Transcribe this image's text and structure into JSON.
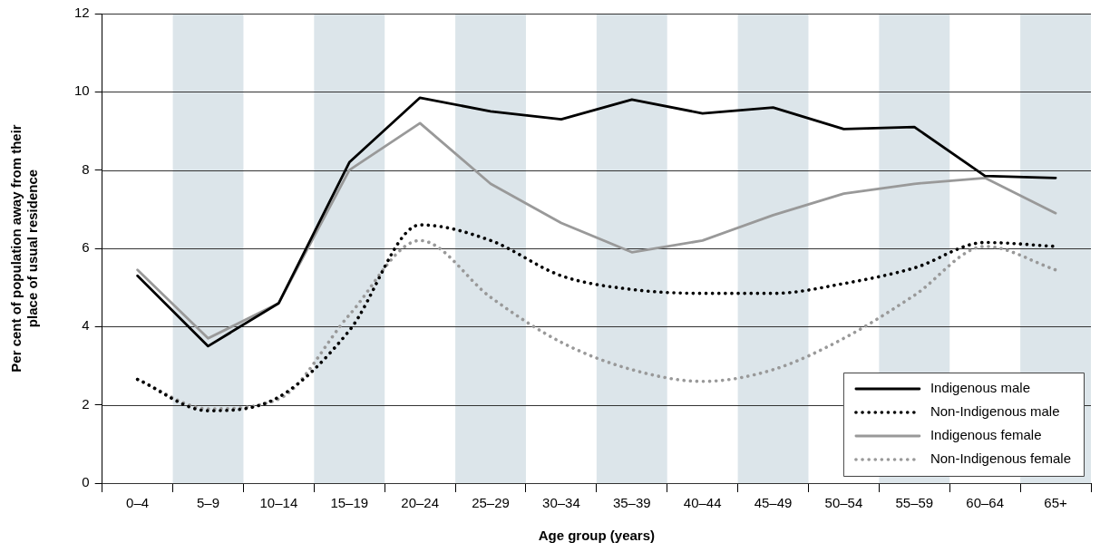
{
  "chart_data": {
    "type": "line",
    "xlabel": "Age group (years)",
    "ylabel": "Per cent of population away from their place of usual residence",
    "categories": [
      "0–4",
      "5–9",
      "10–14",
      "15–19",
      "20–24",
      "25–29",
      "30–34",
      "35–39",
      "40–44",
      "45–49",
      "50–54",
      "55–59",
      "60–64",
      "65+"
    ],
    "series": [
      {
        "name": "Indigenous male",
        "color": "#000000",
        "line_style": "solid",
        "values": [
          5.3,
          3.5,
          4.6,
          8.2,
          9.85,
          9.5,
          9.3,
          9.8,
          9.45,
          9.6,
          9.05,
          9.1,
          7.85,
          7.8
        ]
      },
      {
        "name": "Non-Indigenous male",
        "color": "#000000",
        "line_style": "dotted",
        "values": [
          2.65,
          1.85,
          2.2,
          3.9,
          6.6,
          6.2,
          5.3,
          4.95,
          4.85,
          4.85,
          5.1,
          5.5,
          6.15,
          6.05
        ]
      },
      {
        "name": "Indigenous female",
        "color": "#999999",
        "line_style": "solid",
        "values": [
          5.45,
          3.7,
          4.6,
          8.0,
          9.2,
          7.65,
          6.65,
          5.9,
          6.2,
          6.85,
          7.4,
          7.65,
          7.8,
          6.9
        ]
      },
      {
        "name": "Non-Indigenous female",
        "color": "#999999",
        "line_style": "dotted",
        "values": [
          2.65,
          1.9,
          2.15,
          4.3,
          6.2,
          4.75,
          3.6,
          2.9,
          2.6,
          2.9,
          3.7,
          4.8,
          6.05,
          5.45
        ]
      }
    ],
    "ylim": [
      0,
      12
    ],
    "yticks": [
      0,
      2,
      4,
      6,
      8,
      10,
      12
    ],
    "grid": "y",
    "legend": "bottom right",
    "marker": "none",
    "bands": [
      {
        "axis": "x",
        "from": "5–9",
        "to": "5–9",
        "color": "#dce5ea"
      },
      {
        "axis": "x",
        "from": "15–19",
        "to": "15–19",
        "color": "#dce5ea"
      },
      {
        "axis": "x",
        "from": "25–29",
        "to": "25–29",
        "color": "#dce5ea"
      },
      {
        "axis": "x",
        "from": "35–39",
        "to": "35–39",
        "color": "#dce5ea"
      },
      {
        "axis": "x",
        "from": "45–49",
        "to": "45–49",
        "color": "#dce5ea"
      },
      {
        "axis": "x",
        "from": "55–59",
        "to": "55–59",
        "color": "#dce5ea"
      },
      {
        "axis": "x",
        "from": "65+",
        "to": "65+",
        "color": "#dce5ea"
      }
    ]
  }
}
